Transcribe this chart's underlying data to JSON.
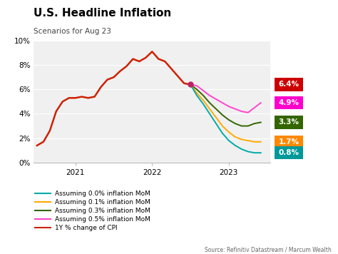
{
  "title": "U.S. Headline Inflation",
  "subtitle": "Scenarios for Aug 23",
  "source": "Source: Refinitiv Datastream / Marcum Wealth",
  "ylim": [
    0,
    10
  ],
  "yticks": [
    0,
    2,
    4,
    6,
    8,
    10
  ],
  "ytick_labels": [
    "0%",
    "2%",
    "4%",
    "6%",
    "8%",
    "10%"
  ],
  "background_color": "#f0f0f0",
  "cpi_color": "#cc2200",
  "color_00": "#00aaaa",
  "color_01": "#ffaa00",
  "color_03": "#336600",
  "color_05": "#ff44cc",
  "legend_entries": [
    {
      "label": "Assuming 0.0% inflation MoM",
      "color": "#00aaaa"
    },
    {
      "label": "Assuming 0.1% inflation MoM",
      "color": "#ffaa00"
    },
    {
      "label": "Assuming 0.3% inflation MoM",
      "color": "#336600"
    },
    {
      "label": "Assuming 0.5% inflation MoM",
      "color": "#ff44cc"
    },
    {
      "label": "1Y % change of CPI",
      "color": "#cc2200"
    }
  ],
  "cpi_y": [
    1.4,
    1.7,
    2.6,
    4.2,
    5.0,
    5.3,
    5.3,
    5.4,
    5.3,
    5.4,
    6.2,
    6.8,
    7.0,
    7.5,
    7.9,
    8.5,
    8.3,
    8.6,
    9.1,
    8.5,
    8.3,
    7.7,
    7.1,
    6.5,
    6.4
  ],
  "scenarios": {
    "00": [
      6.4,
      5.5,
      4.8,
      4.0,
      3.2,
      2.4,
      1.8,
      1.4,
      1.1,
      0.9,
      0.8,
      0.8
    ],
    "01": [
      6.4,
      5.7,
      5.1,
      4.4,
      3.7,
      3.0,
      2.5,
      2.1,
      1.9,
      1.8,
      1.7,
      1.7
    ],
    "03": [
      6.4,
      6.0,
      5.5,
      4.9,
      4.4,
      3.9,
      3.5,
      3.2,
      3.0,
      3.0,
      3.2,
      3.3
    ],
    "05": [
      6.4,
      6.3,
      5.9,
      5.5,
      5.2,
      4.9,
      4.6,
      4.4,
      4.2,
      4.1,
      4.5,
      4.9
    ]
  },
  "num_scenario_pts": 12,
  "x_ticks": [
    6,
    18,
    30
  ],
  "x_tick_labels": [
    "2021",
    "2022",
    "2023"
  ],
  "box_values": [
    6.4,
    4.9,
    3.3,
    1.7,
    0.8
  ],
  "box_colors": [
    "#cc0000",
    "#ff00cc",
    "#336600",
    "#ff8800",
    "#009999"
  ],
  "box_labels": [
    "6.4%",
    "4.9%",
    "3.3%",
    "1.7%",
    "0.8%"
  ]
}
